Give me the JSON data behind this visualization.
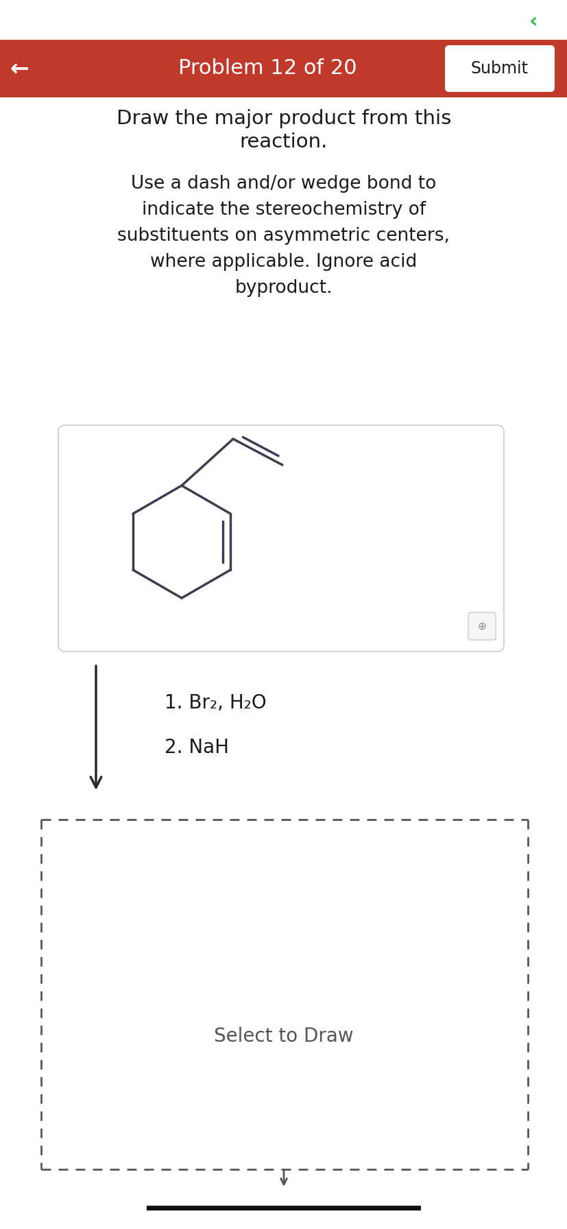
{
  "bg_color": "#ffffff",
  "header_color": "#c0392b",
  "header_text": "Problem 12 of 20",
  "header_text_color": "#ffffff",
  "header_font_size": 22,
  "back_arrow": "←",
  "submit_text": "Submit",
  "title_line1": "Draw the major product from this",
  "title_line2": "reaction.",
  "instruction_text": "Use a dash and/or wedge bond to\nindicate the stereochemistry of\nsubstituents on asymmetric centers,\nwhere applicable. Ignore acid\nbyproduct.",
  "step1_text": "1. Br₂, H₂O",
  "step2_text": "2. NaH",
  "select_text": "Select to Draw",
  "answer_box_dash_color": "#555555",
  "text_color": "#1a1a1a",
  "green_icon_color": "#3cb84a",
  "mol_color": "#3d3d50"
}
